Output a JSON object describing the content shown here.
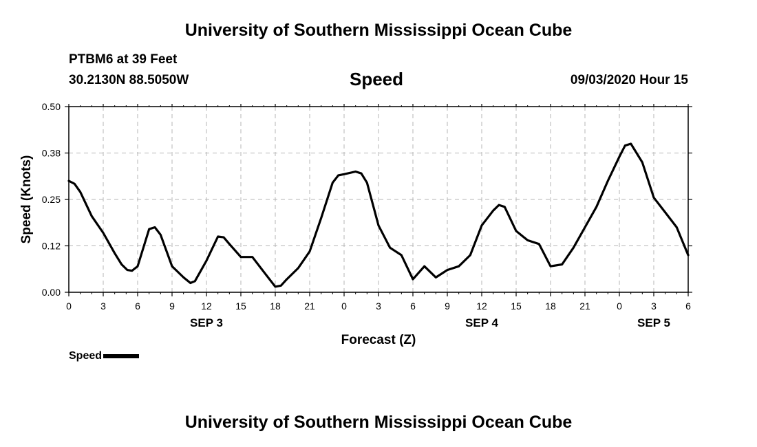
{
  "header": {
    "top_title": "University of Southern Mississippi Ocean Cube",
    "station_line": "PTBM6 at 39 Feet",
    "coords_line": "30.2130N 88.5050W",
    "chart_title": "Speed",
    "timestamp": "09/03/2020 Hour 15"
  },
  "footer": {
    "bottom_title": "University of Southern Mississippi Ocean Cube"
  },
  "legend": {
    "label": "Speed",
    "color": "#000000"
  },
  "chart_data": {
    "type": "line",
    "title": "Speed",
    "xlabel": "Forecast (Z)",
    "ylabel": "Speed (Knots)",
    "x_unit": "forecast hours from 00Z SEP 3",
    "xlim": [
      0,
      54
    ],
    "ylim": [
      0.0,
      0.5
    ],
    "y_ticks": [
      "0.00",
      "0.12",
      "0.25",
      "0.38",
      "0.50"
    ],
    "y_tick_values": [
      0.0,
      0.125,
      0.25,
      0.375,
      0.5
    ],
    "x_ticks": [
      0,
      3,
      6,
      9,
      12,
      15,
      18,
      21,
      24,
      27,
      30,
      33,
      36,
      39,
      42,
      45,
      48,
      51,
      54
    ],
    "x_tick_labels": [
      "0",
      "3",
      "6",
      "9",
      "12",
      "15",
      "18",
      "21",
      "0",
      "3",
      "6",
      "9",
      "12",
      "15",
      "18",
      "21",
      "0",
      "3",
      "6"
    ],
    "date_labels": [
      {
        "label": "SEP 3",
        "x": 12
      },
      {
        "label": "SEP 4",
        "x": 36
      },
      {
        "label": "SEP 5",
        "x": 51
      }
    ],
    "grid": true,
    "legend_position": "bottom-left",
    "series": [
      {
        "name": "Speed",
        "color": "#000000",
        "x": [
          0,
          0.5,
          1,
          2,
          3,
          4,
          4.6,
          5.1,
          5.5,
          6,
          7,
          7.5,
          8,
          9,
          10,
          10.6,
          11,
          12,
          13,
          13.5,
          14,
          15,
          16,
          17,
          18,
          18.5,
          19,
          20,
          21,
          22,
          23,
          23.5,
          24,
          25,
          25.5,
          26,
          27,
          28,
          29,
          30,
          31,
          32,
          33,
          34,
          35,
          36,
          37,
          37.5,
          38,
          39,
          40,
          41,
          42,
          43,
          44,
          45,
          46,
          47,
          48,
          48.5,
          49,
          50,
          51,
          52,
          53,
          54
        ],
        "y": [
          0.3,
          0.292,
          0.27,
          0.205,
          0.16,
          0.105,
          0.075,
          0.06,
          0.058,
          0.07,
          0.17,
          0.175,
          0.155,
          0.07,
          0.04,
          0.025,
          0.03,
          0.085,
          0.15,
          0.148,
          0.13,
          0.095,
          0.095,
          0.055,
          0.015,
          0.018,
          0.035,
          0.065,
          0.11,
          0.2,
          0.295,
          0.315,
          0.318,
          0.325,
          0.32,
          0.295,
          0.18,
          0.12,
          0.1,
          0.035,
          0.07,
          0.04,
          0.06,
          0.07,
          0.1,
          0.18,
          0.22,
          0.235,
          0.23,
          0.165,
          0.14,
          0.13,
          0.07,
          0.075,
          0.12,
          0.175,
          0.23,
          0.3,
          0.365,
          0.395,
          0.4,
          0.35,
          0.255,
          0.215,
          0.175,
          0.1
        ]
      }
    ]
  }
}
